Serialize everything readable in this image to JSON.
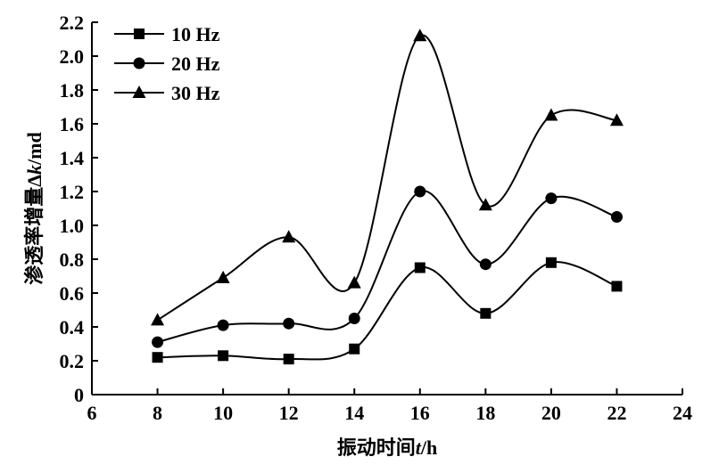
{
  "chart_data": {
    "type": "line",
    "xlabel_text": "振动时间",
    "xlabel_var": "t",
    "xlabel_unit": "/h",
    "ylabel_text": "渗透率增量Δ",
    "ylabel_var": "k",
    "ylabel_unit": "/md",
    "xlim": [
      6,
      24
    ],
    "ylim": [
      0,
      2.2
    ],
    "xticks": [
      "6",
      "8",
      "10",
      "12",
      "14",
      "16",
      "18",
      "20",
      "22",
      "24"
    ],
    "yticks": [
      "0",
      "0.2",
      "0.4",
      "0.6",
      "0.8",
      "1.0",
      "1.2",
      "1.4",
      "1.6",
      "1.8",
      "2.0",
      "2.2"
    ],
    "legend_position": "top-left",
    "grid": false,
    "x": [
      8,
      10,
      12,
      14,
      16,
      18,
      20,
      22
    ],
    "series": [
      {
        "name": "10 Hz",
        "marker": "square",
        "values": [
          0.22,
          0.23,
          0.21,
          0.27,
          0.75,
          0.48,
          0.78,
          0.64
        ]
      },
      {
        "name": "20 Hz",
        "marker": "circle",
        "values": [
          0.31,
          0.41,
          0.42,
          0.45,
          1.2,
          0.77,
          1.16,
          1.05
        ]
      },
      {
        "name": "30 Hz",
        "marker": "triangle",
        "values": [
          0.44,
          0.69,
          0.93,
          0.66,
          2.12,
          1.12,
          1.65,
          1.62
        ]
      }
    ]
  }
}
